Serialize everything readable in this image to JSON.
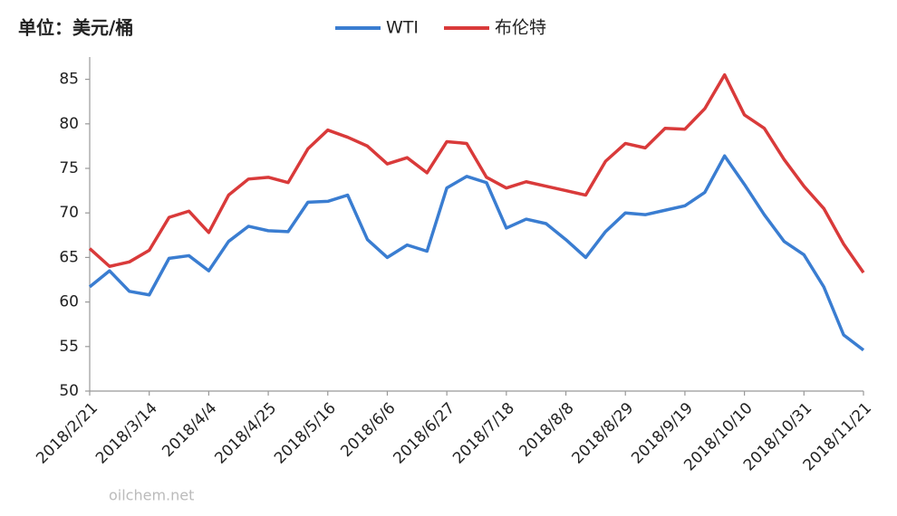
{
  "chart_data": {
    "type": "line",
    "title": "单位：美元/桶",
    "watermark": "oilchem.net",
    "x": [
      "2018/2/21",
      "2018/2/28",
      "2018/3/7",
      "2018/3/14",
      "2018/3/21",
      "2018/3/28",
      "2018/4/4",
      "2018/4/11",
      "2018/4/18",
      "2018/4/25",
      "2018/5/2",
      "2018/5/9",
      "2018/5/16",
      "2018/5/23",
      "2018/5/30",
      "2018/6/6",
      "2018/6/13",
      "2018/6/20",
      "2018/6/27",
      "2018/7/4",
      "2018/7/11",
      "2018/7/18",
      "2018/7/25",
      "2018/8/1",
      "2018/8/8",
      "2018/8/15",
      "2018/8/22",
      "2018/8/29",
      "2018/9/5",
      "2018/9/12",
      "2018/9/19",
      "2018/9/26",
      "2018/10/3",
      "2018/10/10",
      "2018/10/17",
      "2018/10/24",
      "2018/10/31",
      "2018/11/7",
      "2018/11/14",
      "2018/11/21"
    ],
    "series": [
      {
        "name": "WTI",
        "color": "#3a7dd1",
        "values": [
          61.7,
          63.5,
          61.2,
          60.8,
          64.9,
          65.2,
          63.5,
          66.8,
          68.5,
          68.0,
          67.9,
          71.2,
          71.3,
          72.0,
          67.0,
          65.0,
          66.4,
          65.7,
          72.8,
          74.1,
          73.4,
          68.3,
          69.3,
          68.8,
          67.0,
          65.0,
          67.9,
          70.0,
          69.8,
          70.3,
          70.8,
          72.3,
          76.4,
          73.2,
          69.8,
          66.8,
          65.3,
          61.7,
          56.3,
          54.6
        ]
      },
      {
        "name": "布伦特",
        "color": "#d93a3a",
        "values": [
          66.0,
          64.0,
          64.5,
          65.8,
          69.5,
          70.2,
          67.8,
          72.0,
          73.8,
          74.0,
          73.4,
          77.2,
          79.3,
          78.5,
          77.5,
          75.5,
          76.2,
          74.5,
          78.0,
          77.8,
          74.0,
          72.8,
          73.5,
          73.0,
          72.5,
          72.0,
          75.8,
          77.8,
          77.3,
          79.5,
          79.4,
          81.7,
          85.5,
          81.0,
          79.5,
          76.0,
          73.0,
          70.5,
          66.5,
          63.3
        ]
      }
    ],
    "xlim": [
      "2018/2/21",
      "2018/11/21"
    ],
    "xticks": [
      "2018/2/21",
      "2018/3/14",
      "2018/4/4",
      "2018/4/25",
      "2018/5/16",
      "2018/6/6",
      "2018/6/27",
      "2018/7/18",
      "2018/8/8",
      "2018/8/29",
      "2018/9/19",
      "2018/10/10",
      "2018/10/31",
      "2018/11/21"
    ],
    "ylim": [
      50,
      87.5
    ],
    "yticks": [
      50,
      55,
      60,
      65,
      70,
      75,
      80,
      85
    ],
    "grid": false,
    "legend": "top"
  }
}
